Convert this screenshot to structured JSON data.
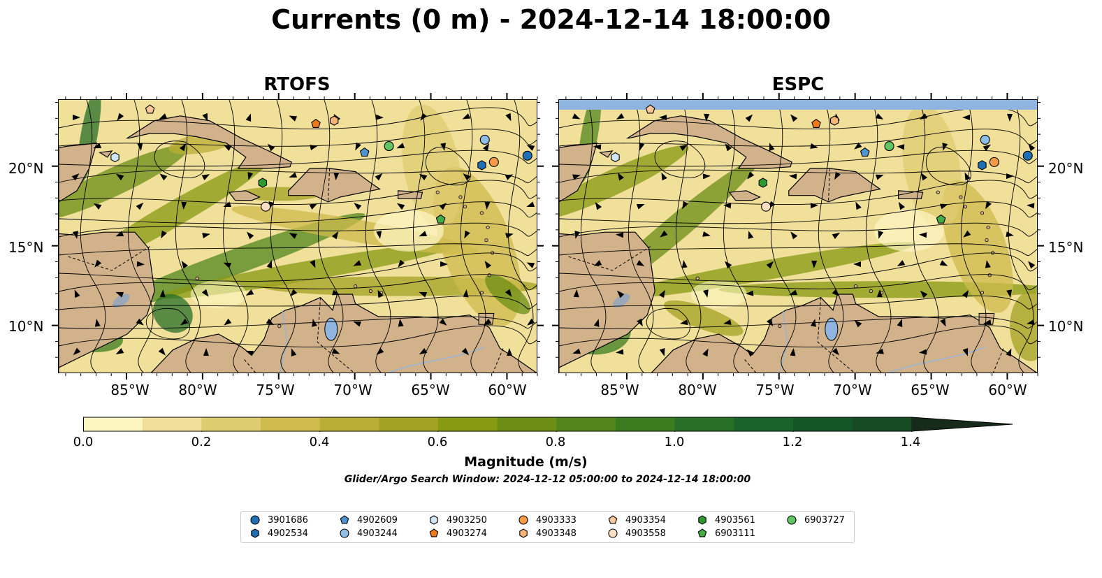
{
  "title": "Currents (0 m) - 2024-12-14 18:00:00",
  "panels": [
    {
      "title": "RTOFS"
    },
    {
      "title": "ESPC"
    }
  ],
  "x_ticks": [
    "85°W",
    "80°W",
    "75°W",
    "70°W",
    "65°W",
    "60°W"
  ],
  "y_ticks": [
    "20°N",
    "15°N",
    "10°N"
  ],
  "colorbar": {
    "label": "Magnitude (m/s)",
    "min": 0.0,
    "max": 1.5,
    "extend": "max",
    "ticks": [
      "0.0",
      "0.2",
      "0.4",
      "0.6",
      "0.8",
      "1.0",
      "1.2",
      "1.4"
    ],
    "colors": [
      "#fdf6c3",
      "#f0e09a",
      "#e0cc70",
      "#cfbb4e",
      "#bbae36",
      "#a3a222",
      "#879a12",
      "#6c8e14",
      "#52861c",
      "#3c7c20",
      "#286f28",
      "#1a632b",
      "#155626",
      "#164a22",
      "#172b1a"
    ]
  },
  "search_window": "Glider/Argo Search Window: 2024-12-12 05:00:00 to 2024-12-14 18:00:00",
  "legend": [
    {
      "id": "3901686",
      "marker": "circle",
      "color": "#1f6fb4"
    },
    {
      "id": "4902534",
      "marker": "hexagon",
      "color": "#1f6fb4"
    },
    {
      "id": "4902609",
      "marker": "pentagon",
      "color": "#4d93d0"
    },
    {
      "id": "4903244",
      "marker": "circle",
      "color": "#8fbde6"
    },
    {
      "id": "4903250",
      "marker": "hexagon",
      "color": "#cfe6f7"
    },
    {
      "id": "4903274",
      "marker": "pentagon",
      "color": "#f07a18"
    },
    {
      "id": "4903333",
      "marker": "circle",
      "color": "#f59a45"
    },
    {
      "id": "4903348",
      "marker": "hexagon",
      "color": "#f8b474"
    },
    {
      "id": "4903354",
      "marker": "pentagon",
      "color": "#fac79a"
    },
    {
      "id": "4903558",
      "marker": "circle",
      "color": "#fde0c4"
    },
    {
      "id": "4903561",
      "marker": "hexagon",
      "color": "#2c9a2c"
    },
    {
      "id": "6903111",
      "marker": "pentagon",
      "color": "#45ab45"
    },
    {
      "id": "6903727",
      "marker": "circle",
      "color": "#63c463"
    }
  ],
  "floats": [
    {
      "id": "3901686",
      "lon": -58.7,
      "lat": 20.7
    },
    {
      "id": "4902534",
      "lon": -61.7,
      "lat": 20.1
    },
    {
      "id": "4902609",
      "lon": -69.4,
      "lat": 20.9
    },
    {
      "id": "4903244",
      "lon": -61.5,
      "lat": 21.7
    },
    {
      "id": "4903250",
      "lon": -85.8,
      "lat": 20.6
    },
    {
      "id": "4903274",
      "lon": -72.6,
      "lat": 22.7
    },
    {
      "id": "4903333",
      "lon": -60.9,
      "lat": 20.3
    },
    {
      "id": "4903348",
      "lon": -71.4,
      "lat": 22.9
    },
    {
      "id": "4903354",
      "lon": -83.5,
      "lat": 23.6
    },
    {
      "id": "4903558",
      "lon": -75.9,
      "lat": 17.5
    },
    {
      "id": "4903561",
      "lon": -76.1,
      "lat": 19.0
    },
    {
      "id": "6903111",
      "lon": -64.4,
      "lat": 16.7
    },
    {
      "id": "6903727",
      "lon": -67.8,
      "lat": 21.3
    }
  ],
  "map_extent": {
    "lon_min": -89.5,
    "lon_max": -58.0,
    "lat_min": 7.0,
    "lat_max": 24.2
  }
}
